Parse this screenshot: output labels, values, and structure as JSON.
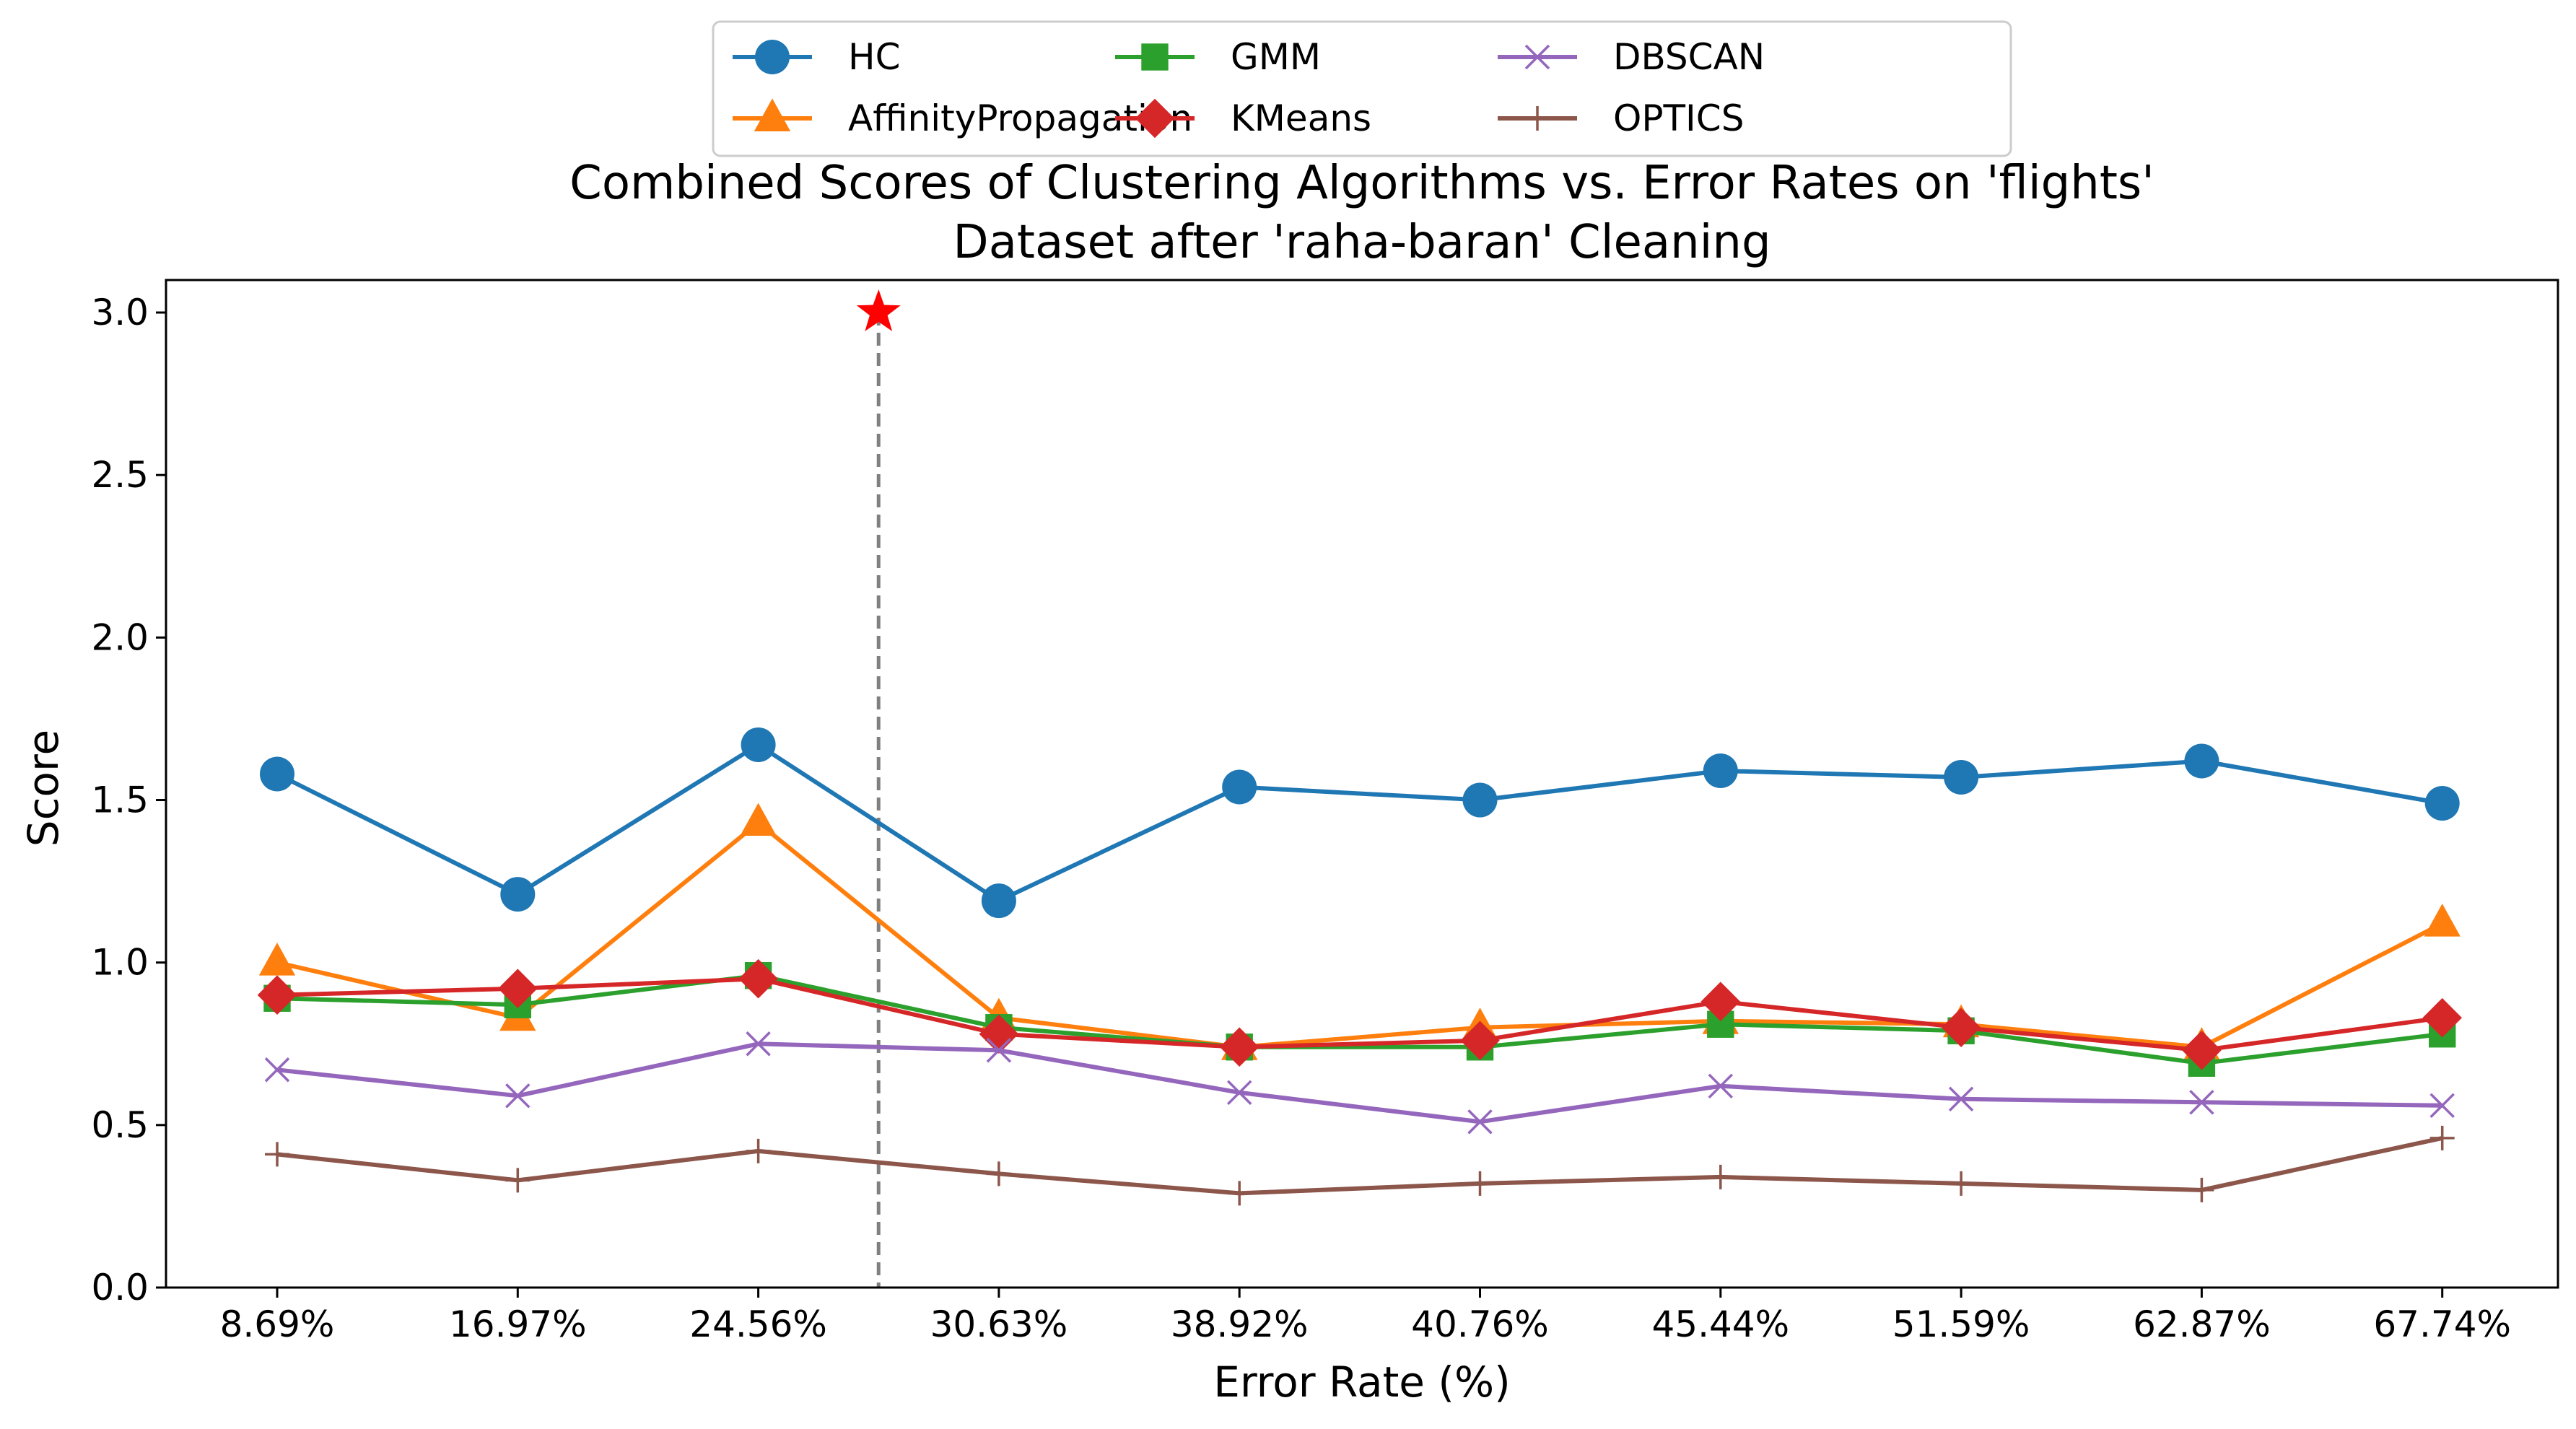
{
  "chart_data": {
    "type": "line",
    "title_line1": "Combined Scores of Clustering Algorithms vs. Error Rates on 'flights'",
    "title_line2": "Dataset after 'raha-baran' Cleaning",
    "xlabel": "Error Rate (%)",
    "ylabel": "Score",
    "categories": [
      "8.69%",
      "16.97%",
      "24.56%",
      "30.63%",
      "38.92%",
      "40.76%",
      "45.44%",
      "51.59%",
      "62.87%",
      "67.74%"
    ],
    "ylim": [
      0,
      3.1
    ],
    "yticks": [
      "0.0",
      "0.5",
      "1.0",
      "1.5",
      "2.0",
      "2.5",
      "3.0"
    ],
    "legend_position": "top-center",
    "grid": false,
    "series": [
      {
        "name": "HC",
        "color": "#1f77b4",
        "marker": "circle",
        "values": [
          1.58,
          1.21,
          1.67,
          1.19,
          1.54,
          1.5,
          1.59,
          1.57,
          1.62,
          1.49
        ]
      },
      {
        "name": "AffinityPropagation",
        "color": "#ff7f0e",
        "marker": "triangle",
        "values": [
          1.0,
          0.83,
          1.43,
          0.83,
          0.74,
          0.8,
          0.82,
          0.81,
          0.74,
          1.12
        ]
      },
      {
        "name": "GMM",
        "color": "#2ca02c",
        "marker": "square",
        "values": [
          0.89,
          0.87,
          0.96,
          0.8,
          0.74,
          0.74,
          0.81,
          0.79,
          0.69,
          0.78
        ]
      },
      {
        "name": "KMeans",
        "color": "#d62728",
        "marker": "diamond",
        "values": [
          0.9,
          0.92,
          0.95,
          0.78,
          0.74,
          0.76,
          0.88,
          0.8,
          0.73,
          0.83
        ]
      },
      {
        "name": "DBSCAN",
        "color": "#9467bd",
        "marker": "x",
        "values": [
          0.67,
          0.59,
          0.75,
          0.73,
          0.6,
          0.51,
          0.62,
          0.58,
          0.57,
          0.56
        ]
      },
      {
        "name": "OPTICS",
        "color": "#8c564b",
        "marker": "plus",
        "values": [
          0.41,
          0.33,
          0.42,
          0.35,
          0.29,
          0.32,
          0.34,
          0.32,
          0.3,
          0.46
        ]
      }
    ],
    "annotation": {
      "vline_x_between_categories": [
        2,
        3
      ],
      "vline_fraction": 0.5,
      "star_y": 3.0,
      "star_color": "#ff0000",
      "vline_color": "#808080"
    }
  }
}
